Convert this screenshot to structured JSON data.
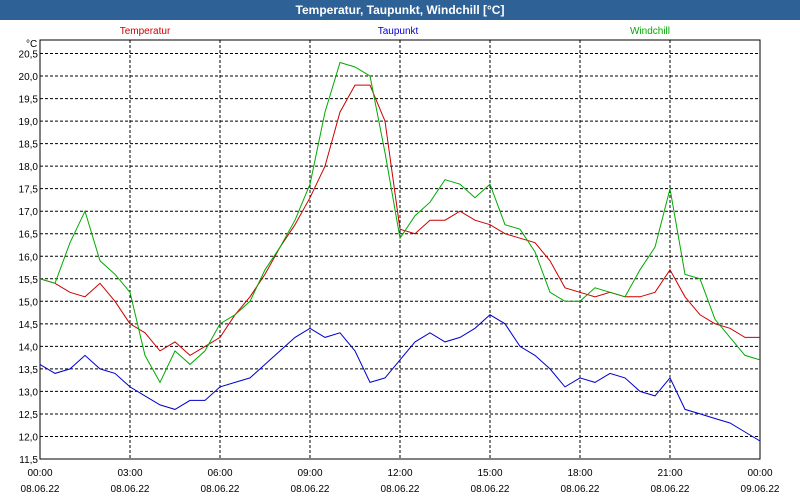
{
  "window": {
    "title": "Temperatur, Taupunkt, Windchill [°C]"
  },
  "chart_data": {
    "type": "line",
    "title": "Temperatur, Taupunkt, Windchill [°C]",
    "ylabel": "°C",
    "xlabel": "",
    "ylim": [
      11.5,
      20.8
    ],
    "xlim": [
      0,
      24
    ],
    "grid": true,
    "yticks": [
      11.5,
      12.0,
      12.5,
      13.0,
      13.5,
      14.0,
      14.5,
      15.0,
      15.5,
      16.0,
      16.5,
      17.0,
      17.5,
      18.0,
      18.5,
      19.0,
      19.5,
      20.0,
      20.5
    ],
    "ytick_labels": [
      "11,5",
      "12,0",
      "12,5",
      "13,0",
      "13,5",
      "14,0",
      "14,5",
      "15,0",
      "15,5",
      "16,0",
      "16,5",
      "17,0",
      "17,5",
      "18,0",
      "18,5",
      "19,0",
      "19,5",
      "20,0",
      "20,5"
    ],
    "xticks": [
      0,
      3,
      6,
      9,
      12,
      15,
      18,
      21,
      24
    ],
    "xtick_times": [
      "00:00",
      "03:00",
      "06:00",
      "09:00",
      "12:00",
      "15:00",
      "18:00",
      "21:00",
      "00:00"
    ],
    "xtick_dates": [
      "08.06.22",
      "08.06.22",
      "08.06.22",
      "08.06.22",
      "08.06.22",
      "08.06.22",
      "08.06.22",
      "08.06.22",
      "09.06.22"
    ],
    "series": [
      {
        "name": "Temperatur",
        "color": "#cc0000",
        "x": [
          0,
          0.5,
          1,
          1.5,
          2,
          2.5,
          3,
          3.5,
          4,
          4.5,
          5,
          5.5,
          6,
          6.5,
          7,
          7.5,
          8,
          8.5,
          9,
          9.5,
          10,
          10.5,
          11,
          11.5,
          12,
          12.5,
          13,
          13.5,
          14,
          14.5,
          15,
          15.5,
          16,
          16.5,
          17,
          17.5,
          18,
          18.5,
          19,
          19.5,
          20,
          20.5,
          21,
          21.5,
          22,
          22.5,
          23,
          23.5,
          24
        ],
        "values": [
          15.5,
          15.4,
          15.2,
          15.1,
          15.4,
          15.0,
          14.5,
          14.3,
          13.9,
          14.1,
          13.8,
          14.0,
          14.2,
          14.7,
          15.1,
          15.6,
          16.2,
          16.7,
          17.3,
          18.0,
          19.2,
          19.8,
          19.8,
          19.0,
          16.6,
          16.5,
          16.8,
          16.8,
          17.0,
          16.8,
          16.7,
          16.5,
          16.4,
          16.3,
          15.9,
          15.3,
          15.2,
          15.1,
          15.2,
          15.1,
          15.1,
          15.2,
          15.7,
          15.1,
          14.7,
          14.5,
          14.4,
          14.2,
          14.2
        ]
      },
      {
        "name": "Taupunkt",
        "color": "#0000cc",
        "x": [
          0,
          0.5,
          1,
          1.5,
          2,
          2.5,
          3,
          3.5,
          4,
          4.5,
          5,
          5.5,
          6,
          6.5,
          7,
          7.5,
          8,
          8.5,
          9,
          9.5,
          10,
          10.5,
          11,
          11.5,
          12,
          12.5,
          13,
          13.5,
          14,
          14.5,
          15,
          15.5,
          16,
          16.5,
          17,
          17.5,
          18,
          18.5,
          19,
          19.5,
          20,
          20.5,
          21,
          21.5,
          22,
          22.5,
          23,
          23.5,
          24
        ],
        "values": [
          13.6,
          13.4,
          13.5,
          13.8,
          13.5,
          13.4,
          13.1,
          12.9,
          12.7,
          12.6,
          12.8,
          12.8,
          13.1,
          13.2,
          13.3,
          13.6,
          13.9,
          14.2,
          14.4,
          14.2,
          14.3,
          13.9,
          13.2,
          13.3,
          13.7,
          14.1,
          14.3,
          14.1,
          14.2,
          14.4,
          14.7,
          14.5,
          14.0,
          13.8,
          13.5,
          13.1,
          13.3,
          13.2,
          13.4,
          13.3,
          13.0,
          12.9,
          13.3,
          12.6,
          12.5,
          12.4,
          12.3,
          12.1,
          11.9
        ]
      },
      {
        "name": "Windchill",
        "color": "#00aa00",
        "x": [
          0,
          0.5,
          1,
          1.5,
          2,
          2.5,
          3,
          3.5,
          4,
          4.5,
          5,
          5.5,
          6,
          6.5,
          7,
          7.5,
          8,
          8.5,
          9,
          9.5,
          10,
          10.5,
          11,
          11.5,
          12,
          12.5,
          13,
          13.5,
          14,
          14.5,
          15,
          15.5,
          16,
          16.5,
          17,
          17.5,
          18,
          18.5,
          19,
          19.5,
          20,
          20.5,
          21,
          21.5,
          22,
          22.5,
          23,
          23.5,
          24
        ],
        "values": [
          15.5,
          15.4,
          16.3,
          17.0,
          15.9,
          15.6,
          15.2,
          13.8,
          13.2,
          13.9,
          13.6,
          13.9,
          14.5,
          14.7,
          15.0,
          15.7,
          16.2,
          16.8,
          17.6,
          19.2,
          20.3,
          20.2,
          20.0,
          18.3,
          16.4,
          16.9,
          17.2,
          17.7,
          17.6,
          17.3,
          17.6,
          16.7,
          16.6,
          16.1,
          15.2,
          15.0,
          15.0,
          15.3,
          15.2,
          15.1,
          15.7,
          16.2,
          17.5,
          15.6,
          15.5,
          14.6,
          14.2,
          13.8,
          13.7
        ]
      }
    ]
  }
}
